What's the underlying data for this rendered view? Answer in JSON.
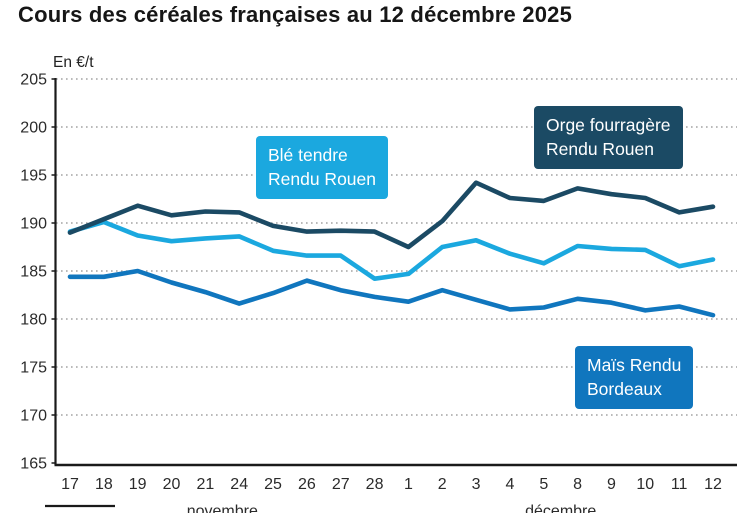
{
  "title": "Cours des céréales françaises au 12 décembre 2025",
  "colors": {
    "ble_tendre": "#1BA8DF",
    "orge_fourragere": "#1B4A64",
    "mais": "#1076BE",
    "grid": "#a3a3a3",
    "axis": "#1a1a1a",
    "tick_text": "#2b2b2b"
  },
  "chart_data": {
    "type": "line",
    "title": "Cours des céréales françaises au 12 décembre 2025",
    "ylabel": "En €/t",
    "xlabel": "",
    "ylim": [
      165,
      205
    ],
    "ytick_step": 5,
    "grid": true,
    "grid_style": "dotted",
    "legend_position": "inline-annotations",
    "categories": [
      "17",
      "18",
      "19",
      "20",
      "21",
      "24",
      "25",
      "26",
      "27",
      "28",
      "1",
      "2",
      "3",
      "4",
      "5",
      "8",
      "9",
      "10",
      "11",
      "12"
    ],
    "month_groups": [
      {
        "label": "novembre",
        "start_index": 0,
        "end_index": 9
      },
      {
        "label": "décembre",
        "start_index": 10,
        "end_index": 19
      }
    ],
    "series": [
      {
        "id": "mais",
        "name": "Maïs Rendu Bordeaux",
        "color": "#1076BE",
        "values": [
          184.4,
          184.4,
          185.0,
          183.8,
          182.8,
          181.6,
          182.7,
          184.0,
          183.0,
          182.3,
          181.8,
          183.0,
          182.0,
          181.0,
          181.2,
          182.1,
          181.7,
          180.9,
          181.3,
          180.4
        ]
      },
      {
        "id": "ble-tendre",
        "name": "Blé tendre Rendu Rouen",
        "color": "#1BA8DF",
        "values": [
          189.1,
          190.1,
          188.7,
          188.1,
          188.4,
          188.6,
          187.1,
          186.6,
          186.6,
          184.2,
          184.7,
          187.5,
          188.2,
          186.8,
          185.8,
          187.6,
          187.3,
          187.2,
          185.5,
          186.2
        ]
      },
      {
        "id": "orge-fourragere",
        "name": "Orge fourragère Rendu Rouen",
        "color": "#1B4A64",
        "values": [
          189.0,
          190.4,
          191.8,
          190.8,
          191.2,
          191.1,
          189.7,
          189.1,
          189.2,
          189.1,
          187.5,
          190.2,
          194.2,
          192.6,
          192.3,
          193.6,
          193.0,
          192.6,
          191.1,
          191.7
        ]
      }
    ],
    "annotations": [
      {
        "id": "ble",
        "line1": "Blé tendre",
        "line2": "Rendu Rouen",
        "color": "#1BA8DF"
      },
      {
        "id": "orge",
        "line1": "Orge fourragère",
        "line2": "Rendu Rouen",
        "color": "#1B4A64"
      },
      {
        "id": "mais",
        "line1": "Maïs Rendu",
        "line2": "Bordeaux",
        "color": "#1076BE"
      }
    ]
  }
}
